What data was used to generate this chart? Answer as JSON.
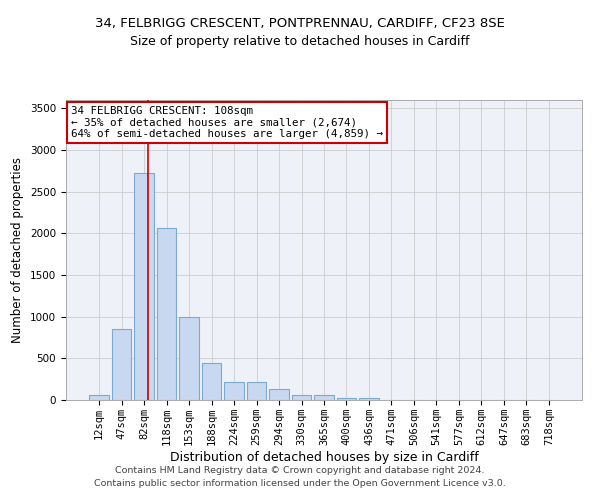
{
  "title_line1": "34, FELBRIGG CRESCENT, PONTPRENNAU, CARDIFF, CF23 8SE",
  "title_line2": "Size of property relative to detached houses in Cardiff",
  "xlabel": "Distribution of detached houses by size in Cardiff",
  "ylabel": "Number of detached properties",
  "categories": [
    "12sqm",
    "47sqm",
    "82sqm",
    "118sqm",
    "153sqm",
    "188sqm",
    "224sqm",
    "259sqm",
    "294sqm",
    "330sqm",
    "365sqm",
    "400sqm",
    "436sqm",
    "471sqm",
    "506sqm",
    "541sqm",
    "577sqm",
    "612sqm",
    "647sqm",
    "683sqm",
    "718sqm"
  ],
  "values": [
    60,
    850,
    2720,
    2060,
    1000,
    450,
    220,
    220,
    130,
    65,
    55,
    30,
    30,
    5,
    5,
    0,
    0,
    0,
    0,
    0,
    0
  ],
  "bar_color": "#c8d8f0",
  "bar_edgecolor": "#7aaad0",
  "bar_linewidth": 0.8,
  "vline_color": "#cc0000",
  "vline_linewidth": 1.2,
  "ylim": [
    0,
    3600
  ],
  "yticks": [
    0,
    500,
    1000,
    1500,
    2000,
    2500,
    3000,
    3500
  ],
  "grid_color": "#cccccc",
  "background_color": "#eef2f8",
  "annotation_text": "34 FELBRIGG CRESCENT: 108sqm\n← 35% of detached houses are smaller (2,674)\n64% of semi-detached houses are larger (4,859) →",
  "annotation_box_edgecolor": "#cc0000",
  "annotation_box_facecolor": "#ffffff",
  "footer_line1": "Contains HM Land Registry data © Crown copyright and database right 2024.",
  "footer_line2": "Contains public sector information licensed under the Open Government Licence v3.0.",
  "title_fontsize": 9.5,
  "subtitle_fontsize": 9,
  "xlabel_fontsize": 9,
  "ylabel_fontsize": 8.5,
  "tick_fontsize": 7.5,
  "annotation_fontsize": 7.8,
  "footer_fontsize": 6.8
}
